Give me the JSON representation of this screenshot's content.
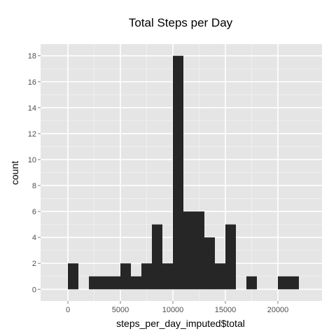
{
  "chart_data": {
    "type": "bar",
    "title": "Total Steps per Day",
    "xlabel": "steps_per_day_imputed$total",
    "ylabel": "count",
    "binwidth": 1000,
    "bin_starts": [
      0,
      1000,
      2000,
      3000,
      4000,
      5000,
      6000,
      7000,
      8000,
      9000,
      10000,
      11000,
      12000,
      13000,
      14000,
      15000,
      16000,
      17000,
      18000,
      19000,
      20000,
      21000
    ],
    "values": [
      2,
      0,
      1,
      1,
      1,
      2,
      1,
      2,
      5,
      2,
      18,
      6,
      6,
      4,
      2,
      5,
      0,
      1,
      0,
      0,
      1,
      1
    ],
    "xlim": [
      -2600,
      24200
    ],
    "ylim": [
      -0.9,
      18.9
    ],
    "x_ticks": [
      0,
      5000,
      10000,
      15000,
      20000
    ],
    "x_tick_labels": [
      "0",
      "5000",
      "10000",
      "15000",
      "20000"
    ],
    "y_ticks": [
      0,
      2,
      4,
      6,
      8,
      10,
      12,
      14,
      16,
      18
    ],
    "y_tick_labels": [
      "0",
      "2",
      "4",
      "6",
      "8",
      "10",
      "12",
      "14",
      "16",
      "18"
    ],
    "grid": true,
    "colors": {
      "panel": "#e5e5e5",
      "grid_major": "#ffffff",
      "grid_minor": "#f2f2f2",
      "bar": "#262626",
      "tick_text": "#4d4d4d",
      "tick_mark": "#7f7f7f"
    }
  }
}
